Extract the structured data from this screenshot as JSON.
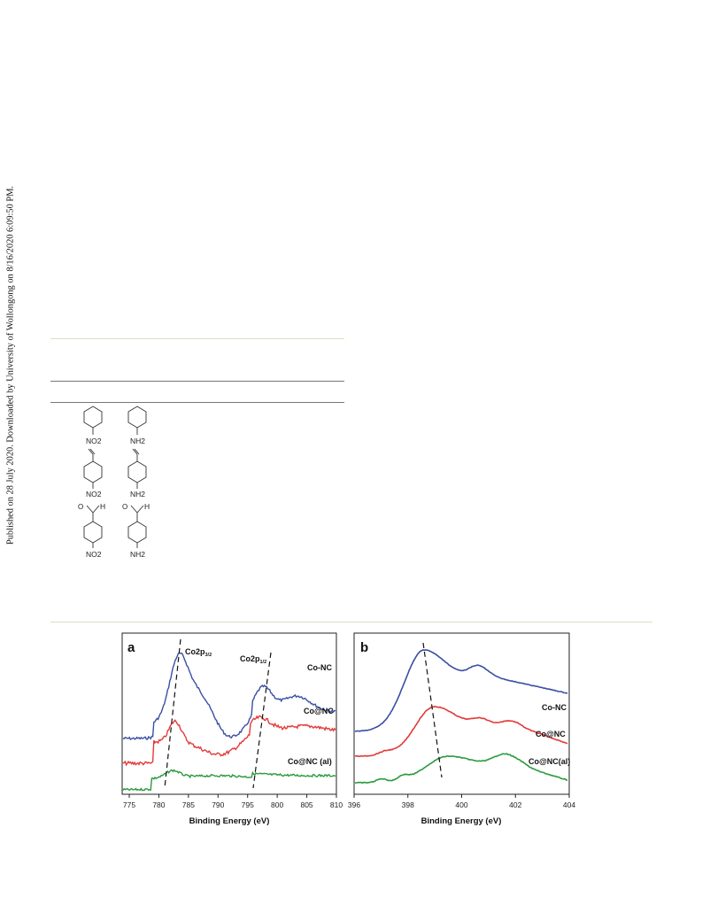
{
  "side_note": "Published on 28 July 2020. Downloaded by University of Wollongong on 8/16/2020 6:09:50 PM.",
  "colors": {
    "co_nc": "#3a4fa3",
    "co_at_nc": "#e23a3a",
    "co_at_nc_al": "#2a9a3f",
    "dashed": "#111111",
    "accent_rule": "#dcdcc4"
  },
  "table_rows": [
    {
      "reactant": "NO2",
      "product": "NH2"
    },
    {
      "reactant": "NO2",
      "product": "NH2"
    },
    {
      "reactant": "NO2",
      "product": "NH2",
      "aldehyde_h": "H"
    }
  ],
  "figure": {
    "panel_a": {
      "label": "a",
      "peak_labels": [
        {
          "text": "Co2p",
          "sub": "3/2"
        },
        {
          "text": "Co2p",
          "sub": "1/2"
        }
      ],
      "series": [
        "Co-NC",
        "Co@NC",
        "Co@NC (al)"
      ],
      "xlabel": "Binding Energy (eV)",
      "xticks": [
        "775",
        "780",
        "785",
        "790",
        "795",
        "800",
        "805",
        "810"
      ]
    },
    "panel_b": {
      "label": "b",
      "series": [
        "Co-NC",
        "Co@NC",
        "Co@NC(al)"
      ],
      "xlabel": "Binding Energy (eV)",
      "xticks": [
        "396",
        "398",
        "400",
        "402",
        "404"
      ]
    }
  }
}
